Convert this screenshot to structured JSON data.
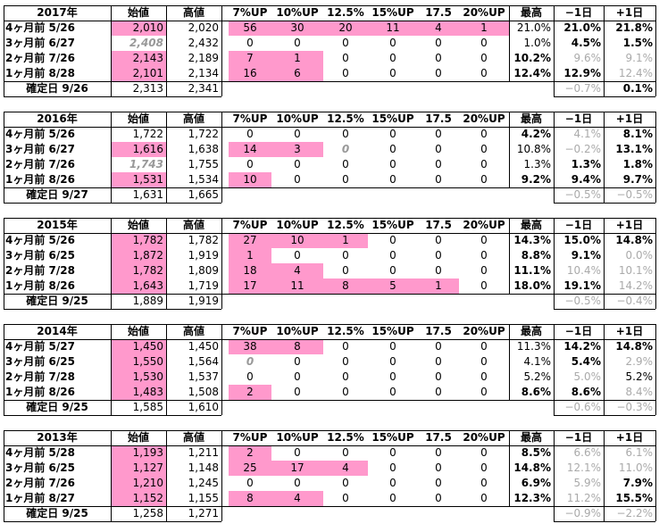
{
  "columns": [
    "始値",
    "高値",
    "7%UP",
    "10%UP",
    "12.5%",
    "15%UP",
    "17.5",
    "20%UP",
    "最高",
    "−1日",
    "+1日"
  ],
  "colors": {
    "highlight": "#ff99cc",
    "muted": "#aaaaaa"
  },
  "blocks": [
    {
      "year": "2017年",
      "rows": [
        {
          "label": "4ヶ月前 5/26",
          "start": "2,010",
          "high": "2,020",
          "u7": "56",
          "u10": "30",
          "u125": "20",
          "u15": "11",
          "u175": "4",
          "u20": "1",
          "max": "21.0%",
          "m1": "21.0%",
          "p1": "21.8%"
        },
        {
          "label": "3ヶ月前 6/27",
          "start": "2,408",
          "high": "2,432",
          "u7": "0",
          "u10": "0",
          "u125": "0",
          "u15": "0",
          "u175": "0",
          "u20": "0",
          "max": "1.0%",
          "m1": "4.5%",
          "p1": "1.5%"
        },
        {
          "label": "2ヶ月前 7/26",
          "start": "2,143",
          "high": "2,189",
          "u7": "7",
          "u10": "1",
          "u125": "0",
          "u15": "0",
          "u175": "0",
          "u20": "0",
          "max": "10.2%",
          "m1": "9.6%",
          "p1": "9.1%"
        },
        {
          "label": "1ヶ月前 8/28",
          "start": "2,101",
          "high": "2,134",
          "u7": "16",
          "u10": "6",
          "u125": "0",
          "u15": "0",
          "u175": "0",
          "u20": "0",
          "max": "12.4%",
          "m1": "12.9%",
          "p1": "12.4%"
        }
      ],
      "confirm": {
        "label": "確定日 9/26",
        "start": "2,313",
        "high": "2,341",
        "m1": "−0.7%",
        "p1": "0.1%"
      }
    },
    {
      "year": "2016年",
      "rows": [
        {
          "label": "4ヶ月前 5/26",
          "start": "1,722",
          "high": "1,722",
          "u7": "0",
          "u10": "0",
          "u125": "0",
          "u15": "0",
          "u175": "0",
          "u20": "0",
          "max": "4.2%",
          "m1": "4.1%",
          "p1": "8.1%"
        },
        {
          "label": "3ヶ月前 6/27",
          "start": "1,616",
          "high": "1,638",
          "u7": "14",
          "u10": "3",
          "u125": "0",
          "u15": "0",
          "u175": "0",
          "u20": "0",
          "max": "10.8%",
          "m1": "−0.2%",
          "p1": "13.1%"
        },
        {
          "label": "2ヶ月前 7/26",
          "start": "1,743",
          "high": "1,755",
          "u7": "0",
          "u10": "0",
          "u125": "0",
          "u15": "0",
          "u175": "0",
          "u20": "0",
          "max": "1.3%",
          "m1": "1.3%",
          "p1": "1.8%"
        },
        {
          "label": "1ヶ月前 8/26",
          "start": "1,531",
          "high": "1,534",
          "u7": "10",
          "u10": "0",
          "u125": "0",
          "u15": "0",
          "u175": "0",
          "u20": "0",
          "max": "9.2%",
          "m1": "9.4%",
          "p1": "9.7%"
        }
      ],
      "confirm": {
        "label": "確定日 9/27",
        "start": "1,631",
        "high": "1,665",
        "m1": "−0.5%",
        "p1": "−0.5%"
      }
    },
    {
      "year": "2015年",
      "rows": [
        {
          "label": "4ヶ月前 5/26",
          "start": "1,782",
          "high": "1,782",
          "u7": "27",
          "u10": "10",
          "u125": "1",
          "u15": "0",
          "u175": "0",
          "u20": "0",
          "max": "14.3%",
          "m1": "15.0%",
          "p1": "14.8%"
        },
        {
          "label": "3ヶ月前 6/25",
          "start": "1,872",
          "high": "1,919",
          "u7": "1",
          "u10": "0",
          "u125": "0",
          "u15": "0",
          "u175": "0",
          "u20": "0",
          "max": "8.8%",
          "m1": "9.1%",
          "p1": "0.0%"
        },
        {
          "label": "2ヶ月前 7/28",
          "start": "1,782",
          "high": "1,809",
          "u7": "18",
          "u10": "4",
          "u125": "0",
          "u15": "0",
          "u175": "0",
          "u20": "0",
          "max": "11.1%",
          "m1": "10.4%",
          "p1": "10.1%"
        },
        {
          "label": "1ヶ月前 8/26",
          "start": "1,643",
          "high": "1,719",
          "u7": "17",
          "u10": "11",
          "u125": "8",
          "u15": "5",
          "u175": "1",
          "u20": "0",
          "max": "18.0%",
          "m1": "19.1%",
          "p1": "14.2%"
        }
      ],
      "confirm": {
        "label": "確定日 9/25",
        "start": "1,889",
        "high": "1,919",
        "m1": "−0.5%",
        "p1": "−0.4%"
      }
    },
    {
      "year": "2014年",
      "rows": [
        {
          "label": "4ヶ月前 5/27",
          "start": "1,450",
          "high": "1,450",
          "u7": "38",
          "u10": "8",
          "u125": "0",
          "u15": "0",
          "u175": "0",
          "u20": "0",
          "max": "11.3%",
          "m1": "14.2%",
          "p1": "14.8%"
        },
        {
          "label": "3ヶ月前 6/25",
          "start": "1,550",
          "high": "1,564",
          "u7": "0",
          "u10": "0",
          "u125": "0",
          "u15": "0",
          "u175": "0",
          "u20": "0",
          "max": "4.1%",
          "m1": "5.4%",
          "p1": "2.9%"
        },
        {
          "label": "2ヶ月前 7/28",
          "start": "1,530",
          "high": "1,537",
          "u7": "0",
          "u10": "0",
          "u125": "0",
          "u15": "0",
          "u175": "0",
          "u20": "0",
          "max": "5.2%",
          "m1": "5.0%",
          "p1": "5.2%"
        },
        {
          "label": "1ヶ月前 8/26",
          "start": "1,483",
          "high": "1,508",
          "u7": "2",
          "u10": "0",
          "u125": "0",
          "u15": "0",
          "u175": "0",
          "u20": "0",
          "max": "8.6%",
          "m1": "8.6%",
          "p1": "8.4%"
        }
      ],
      "confirm": {
        "label": "確定日 9/25",
        "start": "1,585",
        "high": "1,610",
        "m1": "−0.6%",
        "p1": "−0.3%"
      }
    },
    {
      "year": "2013年",
      "rows": [
        {
          "label": "4ヶ月前 5/28",
          "start": "1,193",
          "high": "1,211",
          "u7": "2",
          "u10": "0",
          "u125": "0",
          "u15": "0",
          "u175": "0",
          "u20": "0",
          "max": "8.5%",
          "m1": "6.6%",
          "p1": "6.1%"
        },
        {
          "label": "3ヶ月前 6/25",
          "start": "1,127",
          "high": "1,148",
          "u7": "25",
          "u10": "17",
          "u125": "4",
          "u15": "0",
          "u175": "0",
          "u20": "0",
          "max": "14.8%",
          "m1": "12.1%",
          "p1": "11.0%"
        },
        {
          "label": "2ヶ月前 7/26",
          "start": "1,210",
          "high": "1,245",
          "u7": "0",
          "u10": "0",
          "u125": "0",
          "u15": "0",
          "u175": "0",
          "u20": "0",
          "max": "6.9%",
          "m1": "5.9%",
          "p1": "7.9%"
        },
        {
          "label": "1ヶ月前 8/27",
          "start": "1,152",
          "high": "1,155",
          "u7": "8",
          "u10": "4",
          "u125": "0",
          "u15": "0",
          "u175": "0",
          "u20": "0",
          "max": "12.3%",
          "m1": "11.2%",
          "p1": "15.5%"
        }
      ],
      "confirm": {
        "label": "確定日 9/25",
        "start": "1,258",
        "high": "1,271",
        "m1": "−0.9%",
        "p1": "−2.2%"
      }
    }
  ]
}
